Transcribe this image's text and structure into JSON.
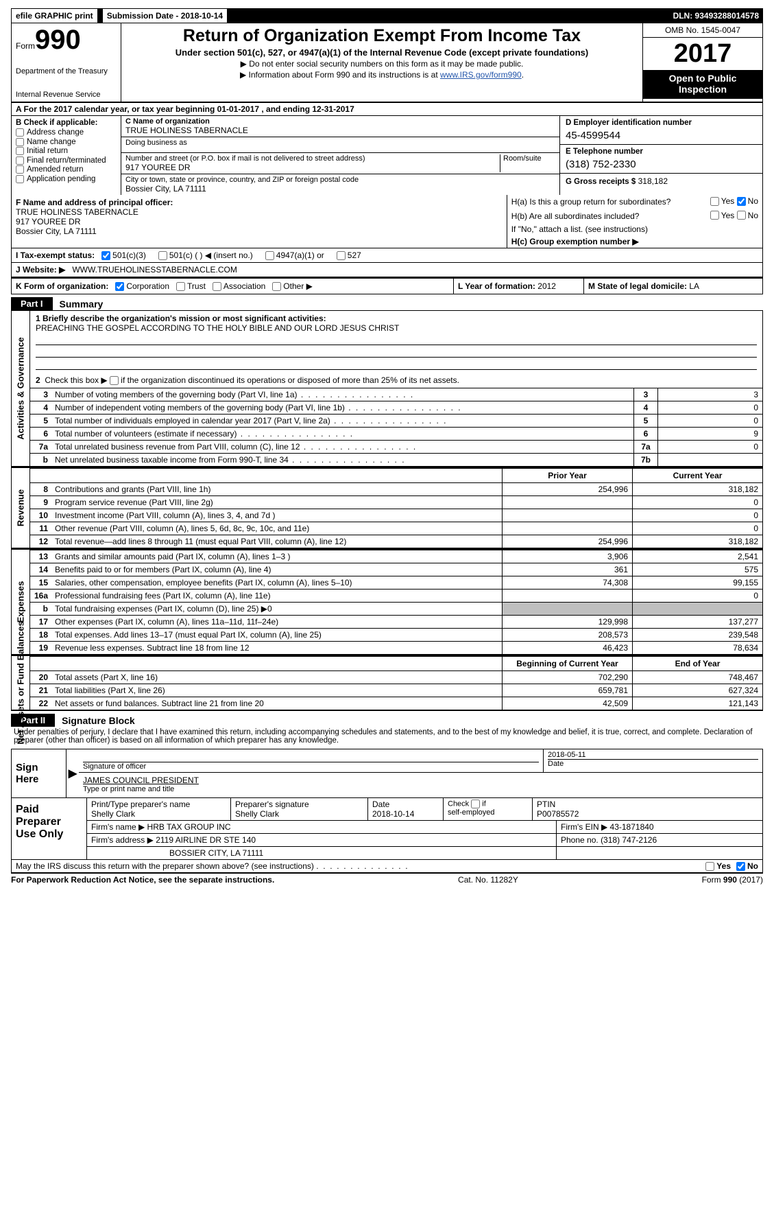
{
  "top": {
    "efile": "efile GRAPHIC print",
    "submission": "Submission Date - 2018-10-14",
    "dln": "DLN: 93493288014578"
  },
  "title": {
    "formWord": "Form",
    "formNum": "990",
    "dept1": "Department of the Treasury",
    "dept2": "Internal Revenue Service",
    "main": "Return of Organization Exempt From Income Tax",
    "sub1": "Under section 501(c), 527, or 4947(a)(1) of the Internal Revenue Code (except private foundations)",
    "sub2a": "▶ Do not enter social security numbers on this form as it may be made public.",
    "sub2b": "▶ Information about Form 990 and its instructions is at ",
    "link": "www.IRS.gov/form990",
    "omb": "OMB No. 1545-0047",
    "year": "2017",
    "open1": "Open to Public",
    "open2": "Inspection"
  },
  "a_line": "A  For the 2017 calendar year, or tax year beginning 01-01-2017   , and ending 12-31-2017",
  "b": {
    "hdr": "B Check if applicable:",
    "opts": [
      "Address change",
      "Name change",
      "Initial return",
      "Final return/terminated",
      "Amended return",
      "Application pending"
    ]
  },
  "c": {
    "nameLab": "C Name of organization",
    "name": "TRUE HOLINESS TABERNACLE",
    "dbaLab": "Doing business as",
    "dba": "",
    "streetLab": "Number and street (or P.O. box if mail is not delivered to street address)",
    "street": "917 YOUREE DR",
    "roomLab": "Room/suite",
    "cityLab": "City or town, state or province, country, and ZIP or foreign postal code",
    "city": "Bossier City, LA  71111"
  },
  "d": {
    "einLab": "D Employer identification number",
    "ein": "45-4599544",
    "telLab": "E Telephone number",
    "tel": "(318) 752-2330",
    "grossLab": "G Gross receipts $",
    "gross": "318,182"
  },
  "f": {
    "lab": "F  Name and address of principal officer:",
    "l1": "TRUE HOLINESS TABERNACLE",
    "l2": "917 YOUREE DR",
    "l3": "Bossier City, LA  71111"
  },
  "h": {
    "a": "H(a)  Is this a group return for subordinates?",
    "b": "H(b)  Are all subordinates included?",
    "note": "If \"No,\" attach a list. (see instructions)",
    "c": "H(c)  Group exemption number ▶",
    "yes": "Yes",
    "no": "No"
  },
  "i": {
    "lab": "I   Tax-exempt status:",
    "o1": "501(c)(3)",
    "o2": "501(c) (   ) ◀ (insert no.)",
    "o3": "4947(a)(1) or",
    "o4": "527"
  },
  "j": {
    "lab": "J   Website: ▶",
    "val": "WWW.TRUEHOLINESSTABERNACLE.COM"
  },
  "k": {
    "lab": "K Form of organization:",
    "o": [
      "Corporation",
      "Trust",
      "Association",
      "Other ▶"
    ]
  },
  "l": {
    "lab": "L Year of formation:",
    "val": "2012"
  },
  "m": {
    "lab": "M State of legal domicile:",
    "val": "LA"
  },
  "part1": {
    "tag": "Part I",
    "title": "Summary"
  },
  "ag": {
    "l1Lead": "1   Briefly describe the organization's mission or most significant activities:",
    "mission": "PREACHING THE GOSPEL ACCORDING TO THE HOLY BIBLE AND OUR LORD JESUS CHRIST",
    "l2": "2   Check this box ▶      if the organization discontinued its operations or disposed of more than 25% of its net assets.",
    "rows": [
      {
        "no": "3",
        "desc": "Number of voting members of the governing body (Part VI, line 1a)",
        "key": "3",
        "val": "3"
      },
      {
        "no": "4",
        "desc": "Number of independent voting members of the governing body (Part VI, line 1b)",
        "key": "4",
        "val": "0"
      },
      {
        "no": "5",
        "desc": "Total number of individuals employed in calendar year 2017 (Part V, line 2a)",
        "key": "5",
        "val": "0"
      },
      {
        "no": "6",
        "desc": "Total number of volunteers (estimate if necessary)",
        "key": "6",
        "val": "9"
      },
      {
        "no": "7a",
        "desc": "Total unrelated business revenue from Part VIII, column (C), line 12",
        "key": "7a",
        "val": "0"
      },
      {
        "no": "b",
        "desc": "Net unrelated business taxable income from Form 990-T, line 34",
        "key": "7b",
        "val": ""
      }
    ]
  },
  "pc_labels": {
    "prior": "Prior Year",
    "current": "Current Year",
    "begin": "Beginning of Current Year",
    "end": "End of Year"
  },
  "revenue": [
    {
      "no": "8",
      "desc": "Contributions and grants (Part VIII, line 1h)",
      "p": "254,996",
      "c": "318,182"
    },
    {
      "no": "9",
      "desc": "Program service revenue (Part VIII, line 2g)",
      "p": "",
      "c": "0"
    },
    {
      "no": "10",
      "desc": "Investment income (Part VIII, column (A), lines 3, 4, and 7d )",
      "p": "",
      "c": "0"
    },
    {
      "no": "11",
      "desc": "Other revenue (Part VIII, column (A), lines 5, 6d, 8c, 9c, 10c, and 11e)",
      "p": "",
      "c": "0"
    },
    {
      "no": "12",
      "desc": "Total revenue—add lines 8 through 11 (must equal Part VIII, column (A), line 12)",
      "p": "254,996",
      "c": "318,182"
    }
  ],
  "expenses": [
    {
      "no": "13",
      "desc": "Grants and similar amounts paid (Part IX, column (A), lines 1–3 )",
      "p": "3,906",
      "c": "2,541"
    },
    {
      "no": "14",
      "desc": "Benefits paid to or for members (Part IX, column (A), line 4)",
      "p": "361",
      "c": "575"
    },
    {
      "no": "15",
      "desc": "Salaries, other compensation, employee benefits (Part IX, column (A), lines 5–10)",
      "p": "74,308",
      "c": "99,155"
    },
    {
      "no": "16a",
      "desc": "Professional fundraising fees (Part IX, column (A), line 11e)",
      "p": "",
      "c": "0"
    },
    {
      "no": "b",
      "desc": "Total fundraising expenses (Part IX, column (D), line 25) ▶0",
      "p": "SHADE",
      "c": "SHADE"
    },
    {
      "no": "17",
      "desc": "Other expenses (Part IX, column (A), lines 11a–11d, 11f–24e)",
      "p": "129,998",
      "c": "137,277"
    },
    {
      "no": "18",
      "desc": "Total expenses. Add lines 13–17 (must equal Part IX, column (A), line 25)",
      "p": "208,573",
      "c": "239,548"
    },
    {
      "no": "19",
      "desc": "Revenue less expenses. Subtract line 18 from line 12",
      "p": "46,423",
      "c": "78,634"
    }
  ],
  "netassets": [
    {
      "no": "20",
      "desc": "Total assets (Part X, line 16)",
      "p": "702,290",
      "c": "748,467"
    },
    {
      "no": "21",
      "desc": "Total liabilities (Part X, line 26)",
      "p": "659,781",
      "c": "627,324"
    },
    {
      "no": "22",
      "desc": "Net assets or fund balances. Subtract line 21 from line 20",
      "p": "42,509",
      "c": "121,143"
    }
  ],
  "side": {
    "ag": "Activities & Governance",
    "rev": "Revenue",
    "exp": "Expenses",
    "net": "Net Assets or\nFund Balances"
  },
  "part2": {
    "tag": "Part II",
    "title": "Signature Block",
    "text": "Under penalties of perjury, I declare that I have examined this return, including accompanying schedules and statements, and to the best of my knowledge and belief, it is true, correct, and complete. Declaration of preparer (other than officer) is based on all information of which preparer has any knowledge."
  },
  "sign": {
    "here": "Sign\nHere",
    "sigLab": "Signature of officer",
    "date": "2018-05-11",
    "dateLab": "Date",
    "printed": "JAMES COUNCIL PRESIDENT",
    "printedLab": "Type or print name and title"
  },
  "prep": {
    "lab": "Paid\nPreparer\nUse Only",
    "r1": {
      "a": "Print/Type preparer's name",
      "av": "Shelly Clark",
      "b": "Preparer's signature",
      "bv": "Shelly Clark",
      "c": "Date",
      "cv": "2018-10-14",
      "d": "Check        if self-employed",
      "dv": "",
      "e": "PTIN",
      "ev": "P00785572"
    },
    "r2": {
      "a": "Firm's name    ▶",
      "av": "HRB TAX GROUP INC",
      "b": "Firm's EIN ▶",
      "bv": "43-1871840"
    },
    "r3": {
      "a": "Firm's address ▶",
      "av": "2119 AIRLINE DR STE 140",
      "b": "Phone no.",
      "bv": "(318) 747-2126"
    },
    "r4": {
      "av": "BOSSIER CITY, LA  71111"
    }
  },
  "discuss": {
    "q": "May the IRS discuss this return with the preparer shown above? (see instructions)",
    "yes": "Yes",
    "no": "No"
  },
  "foot": {
    "l": "For Paperwork Reduction Act Notice, see the separate instructions.",
    "m": "Cat. No. 11282Y",
    "r": "Form 990 (2017)"
  }
}
